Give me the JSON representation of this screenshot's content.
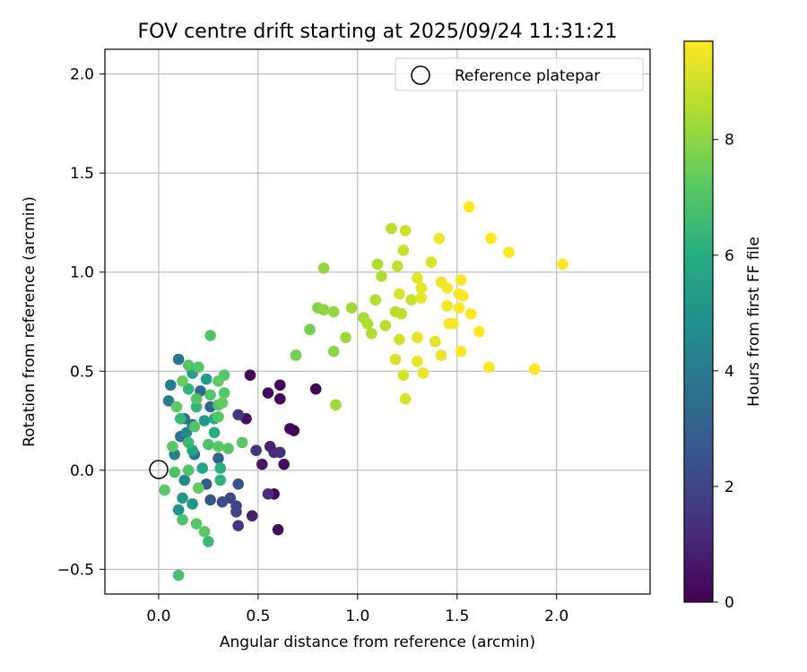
{
  "chart_data": {
    "type": "scatter",
    "title": "FOV centre drift starting at 2025/09/24 11:31:21",
    "xlabel": "Angular distance from reference (arcmin)",
    "ylabel": "Rotation from reference (arcmin)",
    "xlim": [
      -0.27,
      2.47
    ],
    "ylim": [
      -0.625,
      2.125
    ],
    "xticks": [
      0.0,
      0.5,
      1.0,
      1.5,
      2.0
    ],
    "xtick_labels": [
      "0.0",
      "0.5",
      "1.0",
      "1.5",
      "2.0"
    ],
    "yticks": [
      -0.5,
      0.0,
      0.5,
      1.0,
      1.5,
      2.0
    ],
    "ytick_labels": [
      "−0.5",
      "0.0",
      "0.5",
      "1.0",
      "1.5",
      "2.0"
    ],
    "grid": true,
    "legend": {
      "position": "top-right",
      "label": "Reference platepar"
    },
    "reference_point": {
      "x": 0.0,
      "y": 0.0
    },
    "colorbar": {
      "label": "Hours from first FF file",
      "min": 0,
      "max": 9.7,
      "ticks": [
        0,
        2,
        4,
        6,
        8
      ],
      "tick_labels": [
        "0",
        "2",
        "4",
        "6",
        "8"
      ],
      "colormap": "viridis"
    },
    "series": [
      {
        "name": "FOV centre",
        "points": [
          {
            "x": 0.46,
            "y": 0.48,
            "h": 0.2
          },
          {
            "x": 0.44,
            "y": 0.26,
            "h": 0.4
          },
          {
            "x": 0.55,
            "y": 0.39,
            "h": 0.3
          },
          {
            "x": 0.61,
            "y": 0.43,
            "h": 0.2
          },
          {
            "x": 0.61,
            "y": 0.36,
            "h": 0.1
          },
          {
            "x": 0.66,
            "y": 0.21,
            "h": 0.2
          },
          {
            "x": 0.68,
            "y": 0.2,
            "h": 0.1
          },
          {
            "x": 0.79,
            "y": 0.41,
            "h": 0.1
          },
          {
            "x": 0.63,
            "y": 0.03,
            "h": 0.3
          },
          {
            "x": 0.58,
            "y": -0.12,
            "h": 0.2
          },
          {
            "x": 0.6,
            "y": -0.3,
            "h": 0.3
          },
          {
            "x": 0.52,
            "y": 0.03,
            "h": 0.6
          },
          {
            "x": 0.56,
            "y": 0.12,
            "h": 1.0
          },
          {
            "x": 0.58,
            "y": 0.09,
            "h": 1.1
          },
          {
            "x": 0.61,
            "y": 0.09,
            "h": 1.3
          },
          {
            "x": 0.55,
            "y": -0.12,
            "h": 1.2
          },
          {
            "x": 0.49,
            "y": 0.1,
            "h": 1.4
          },
          {
            "x": 0.47,
            "y": -0.23,
            "h": 0.9
          },
          {
            "x": 0.4,
            "y": 0.28,
            "h": 1.6
          },
          {
            "x": 0.39,
            "y": -0.18,
            "h": 2.0
          },
          {
            "x": 0.4,
            "y": -0.28,
            "h": 1.5
          },
          {
            "x": 0.39,
            "y": -0.21,
            "h": 2.0
          },
          {
            "x": 0.36,
            "y": -0.14,
            "h": 2.1
          },
          {
            "x": 0.32,
            "y": -0.16,
            "h": 2.3
          },
          {
            "x": 0.4,
            "y": -0.07,
            "h": 2.4
          },
          {
            "x": 0.26,
            "y": -0.15,
            "h": 2.6
          },
          {
            "x": 0.24,
            "y": -0.07,
            "h": 2.8
          },
          {
            "x": 0.3,
            "y": 0.06,
            "h": 3.0
          },
          {
            "x": 0.26,
            "y": 0.32,
            "h": 3.1
          },
          {
            "x": 0.21,
            "y": 0.4,
            "h": 3.3
          },
          {
            "x": 0.17,
            "y": 0.23,
            "h": 3.3
          },
          {
            "x": 0.13,
            "y": 0.26,
            "h": 3.5
          },
          {
            "x": 0.11,
            "y": 0.17,
            "h": 3.6
          },
          {
            "x": 0.18,
            "y": 0.08,
            "h": 3.6
          },
          {
            "x": 0.1,
            "y": 0.56,
            "h": 3.8
          },
          {
            "x": 0.05,
            "y": 0.35,
            "h": 4.0
          },
          {
            "x": 0.06,
            "y": 0.43,
            "h": 4.2
          },
          {
            "x": 0.08,
            "y": 0.08,
            "h": 4.3
          },
          {
            "x": 0.14,
            "y": 0.19,
            "h": 4.5
          },
          {
            "x": 0.13,
            "y": -0.05,
            "h": 4.6
          },
          {
            "x": 0.1,
            "y": -0.2,
            "h": 4.8
          },
          {
            "x": 0.17,
            "y": -0.17,
            "h": 5.0
          },
          {
            "x": 0.12,
            "y": -0.14,
            "h": 5.1
          },
          {
            "x": 0.23,
            "y": 0.25,
            "h": 5.2
          },
          {
            "x": 0.24,
            "y": 0.46,
            "h": 5.3
          },
          {
            "x": 0.17,
            "y": 0.49,
            "h": 5.5
          },
          {
            "x": 0.17,
            "y": 0.1,
            "h": 5.6
          },
          {
            "x": 0.22,
            "y": 0.01,
            "h": 5.7
          },
          {
            "x": 0.28,
            "y": 0.26,
            "h": 5.8
          },
          {
            "x": 0.28,
            "y": 0.19,
            "h": 6.0
          },
          {
            "x": 0.31,
            "y": 0.01,
            "h": 6.1
          },
          {
            "x": 0.31,
            "y": -0.05,
            "h": 6.2
          },
          {
            "x": 0.15,
            "y": 0.41,
            "h": 6.3
          },
          {
            "x": 0.19,
            "y": 0.32,
            "h": 6.3
          },
          {
            "x": 0.11,
            "y": 0.26,
            "h": 6.4
          },
          {
            "x": 0.15,
            "y": 0.14,
            "h": 6.5
          },
          {
            "x": 0.25,
            "y": -0.36,
            "h": 6.6
          },
          {
            "x": 0.1,
            "y": -0.53,
            "h": 6.8
          },
          {
            "x": 0.12,
            "y": -0.25,
            "h": 6.9
          },
          {
            "x": 0.08,
            "y": -0.01,
            "h": 6.9
          },
          {
            "x": 0.15,
            "y": 0.0,
            "h": 7.0
          },
          {
            "x": 0.18,
            "y": 0.22,
            "h": 7.0
          },
          {
            "x": 0.26,
            "y": 0.38,
            "h": 7.0
          },
          {
            "x": 0.2,
            "y": 0.52,
            "h": 7.1
          },
          {
            "x": 0.26,
            "y": 0.68,
            "h": 7.0
          },
          {
            "x": 0.15,
            "y": 0.53,
            "h": 7.0
          },
          {
            "x": 0.19,
            "y": 0.36,
            "h": 7.0
          },
          {
            "x": 0.33,
            "y": 0.48,
            "h": 7.1
          },
          {
            "x": 0.33,
            "y": 0.39,
            "h": 7.1
          },
          {
            "x": 0.3,
            "y": 0.33,
            "h": 7.0
          },
          {
            "x": 0.3,
            "y": 0.27,
            "h": 7.1
          },
          {
            "x": 0.25,
            "y": 0.13,
            "h": 6.9
          },
          {
            "x": 0.3,
            "y": 0.12,
            "h": 7.2
          },
          {
            "x": 0.35,
            "y": 0.11,
            "h": 7.1
          },
          {
            "x": 0.42,
            "y": 0.14,
            "h": 7.2
          },
          {
            "x": 0.2,
            "y": -0.09,
            "h": 7.3
          },
          {
            "x": 0.23,
            "y": -0.31,
            "h": 7.2
          },
          {
            "x": 0.19,
            "y": -0.27,
            "h": 7.1
          },
          {
            "x": 0.03,
            "y": -0.1,
            "h": 7.2
          },
          {
            "x": 0.07,
            "y": 0.12,
            "h": 7.2
          },
          {
            "x": 0.09,
            "y": 0.32,
            "h": 7.3
          },
          {
            "x": 0.12,
            "y": 0.45,
            "h": 7.4
          },
          {
            "x": 0.3,
            "y": 0.45,
            "h": 7.3
          },
          {
            "x": 0.32,
            "y": 0.34,
            "h": 7.4
          },
          {
            "x": 0.76,
            "y": 0.71,
            "h": 7.6
          },
          {
            "x": 0.69,
            "y": 0.58,
            "h": 7.6
          },
          {
            "x": 0.8,
            "y": 0.82,
            "h": 7.8
          },
          {
            "x": 0.83,
            "y": 1.02,
            "h": 8.1
          },
          {
            "x": 0.83,
            "y": 0.81,
            "h": 8.0
          },
          {
            "x": 0.88,
            "y": 0.8,
            "h": 8.1
          },
          {
            "x": 0.88,
            "y": 0.6,
            "h": 8.0
          },
          {
            "x": 0.89,
            "y": 0.33,
            "h": 8.3
          },
          {
            "x": 0.94,
            "y": 0.67,
            "h": 8.2
          },
          {
            "x": 0.97,
            "y": 0.82,
            "h": 8.3
          },
          {
            "x": 1.03,
            "y": 0.77,
            "h": 8.4
          },
          {
            "x": 1.05,
            "y": 0.74,
            "h": 8.5
          },
          {
            "x": 1.07,
            "y": 0.69,
            "h": 8.5
          },
          {
            "x": 1.09,
            "y": 0.86,
            "h": 8.6
          },
          {
            "x": 1.1,
            "y": 1.04,
            "h": 8.5
          },
          {
            "x": 1.12,
            "y": 0.98,
            "h": 8.5
          },
          {
            "x": 1.14,
            "y": 0.73,
            "h": 8.7
          },
          {
            "x": 1.17,
            "y": 1.22,
            "h": 8.7
          },
          {
            "x": 1.19,
            "y": 0.8,
            "h": 8.7
          },
          {
            "x": 1.2,
            "y": 1.03,
            "h": 8.8
          },
          {
            "x": 1.22,
            "y": 0.79,
            "h": 8.8
          },
          {
            "x": 1.23,
            "y": 1.11,
            "h": 8.9
          },
          {
            "x": 1.24,
            "y": 1.21,
            "h": 9.0
          },
          {
            "x": 1.27,
            "y": 0.86,
            "h": 8.9
          },
          {
            "x": 1.21,
            "y": 0.66,
            "h": 9.0
          },
          {
            "x": 1.19,
            "y": 0.56,
            "h": 9.1
          },
          {
            "x": 1.23,
            "y": 0.48,
            "h": 9.1
          },
          {
            "x": 1.24,
            "y": 0.36,
            "h": 9.1
          },
          {
            "x": 1.21,
            "y": 0.89,
            "h": 9.2
          },
          {
            "x": 1.3,
            "y": 0.97,
            "h": 9.3
          },
          {
            "x": 1.32,
            "y": 0.92,
            "h": 9.3
          },
          {
            "x": 1.32,
            "y": 0.87,
            "h": 9.4
          },
          {
            "x": 1.3,
            "y": 0.67,
            "h": 9.4
          },
          {
            "x": 1.3,
            "y": 0.55,
            "h": 9.4
          },
          {
            "x": 1.33,
            "y": 0.49,
            "h": 9.4
          },
          {
            "x": 1.37,
            "y": 1.05,
            "h": 9.2
          },
          {
            "x": 1.39,
            "y": 0.65,
            "h": 9.3
          },
          {
            "x": 1.41,
            "y": 1.17,
            "h": 9.5
          },
          {
            "x": 1.42,
            "y": 0.95,
            "h": 9.5
          },
          {
            "x": 1.42,
            "y": 0.58,
            "h": 9.4
          },
          {
            "x": 1.45,
            "y": 0.92,
            "h": 9.6
          },
          {
            "x": 1.45,
            "y": 0.83,
            "h": 9.6
          },
          {
            "x": 1.46,
            "y": 0.74,
            "h": 9.6
          },
          {
            "x": 1.48,
            "y": 0.74,
            "h": 9.6
          },
          {
            "x": 1.51,
            "y": 0.89,
            "h": 9.7
          },
          {
            "x": 1.51,
            "y": 0.82,
            "h": 9.7
          },
          {
            "x": 1.52,
            "y": 0.96,
            "h": 9.7
          },
          {
            "x": 1.53,
            "y": 0.88,
            "h": 9.7
          },
          {
            "x": 1.52,
            "y": 0.6,
            "h": 9.7
          },
          {
            "x": 1.56,
            "y": 1.33,
            "h": 9.7
          },
          {
            "x": 1.57,
            "y": 0.79,
            "h": 9.7
          },
          {
            "x": 1.61,
            "y": 0.7,
            "h": 9.7
          },
          {
            "x": 1.67,
            "y": 1.17,
            "h": 9.7
          },
          {
            "x": 1.66,
            "y": 0.52,
            "h": 9.7
          },
          {
            "x": 1.76,
            "y": 1.1,
            "h": 9.7
          },
          {
            "x": 1.89,
            "y": 0.51,
            "h": 9.7
          },
          {
            "x": 2.03,
            "y": 1.04,
            "h": 9.7
          }
        ]
      }
    ]
  }
}
